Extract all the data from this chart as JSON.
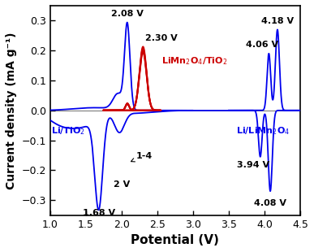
{
  "xlabel": "Potential (V)",
  "ylabel": "Current density (mA g⁻¹)",
  "xlim": [
    1.0,
    4.5
  ],
  "ylim": [
    -0.35,
    0.35
  ],
  "yticks": [
    -0.3,
    -0.2,
    -0.1,
    0.0,
    0.1,
    0.2,
    0.3
  ],
  "xticks": [
    1.0,
    1.5,
    2.0,
    2.5,
    3.0,
    3.5,
    4.0,
    4.5
  ],
  "blue_color": "#0000ee",
  "red_color": "#cc0000"
}
